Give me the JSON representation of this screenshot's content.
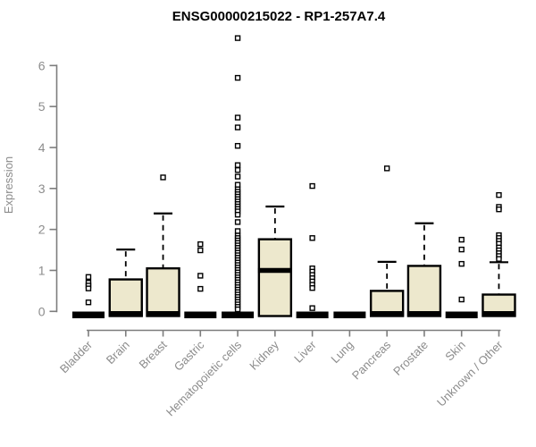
{
  "title": "ENSG00000215022 - RP1-257A7.4",
  "chart_data": {
    "type": "boxplot",
    "title": "ENSG00000215022 - RP1-257A7.4",
    "xlabel": "",
    "ylabel": "Expression",
    "ylim": [
      0,
      6.8
    ],
    "yticks": [
      0,
      1,
      2,
      3,
      4,
      5,
      6
    ],
    "grid": false,
    "legend": "none",
    "categories": [
      "Bladder",
      "Brain",
      "Breast",
      "Gastric",
      "Hematopoietic cells",
      "Kidney",
      "Liver",
      "Lung",
      "Pancreas",
      "Prostate",
      "Skin",
      "Unknown / Other"
    ],
    "series": [
      {
        "name": "Bladder",
        "q1": 0,
        "median": 0,
        "q3": 0,
        "whisker_low": 0,
        "whisker_high": 0,
        "outliers": [
          0.84,
          0.7,
          0.63,
          0.56,
          0.22
        ]
      },
      {
        "name": "Brain",
        "q1": 0,
        "median": 0,
        "q3": 0.78,
        "whisker_low": 0,
        "whisker_high": 1.51,
        "outliers": []
      },
      {
        "name": "Breast",
        "q1": 0,
        "median": 0,
        "q3": 1.05,
        "whisker_low": 0,
        "whisker_high": 2.39,
        "outliers": [
          3.27
        ]
      },
      {
        "name": "Gastric",
        "q1": 0,
        "median": 0,
        "q3": 0,
        "whisker_low": 0,
        "whisker_high": 0,
        "outliers": [
          1.64,
          1.49,
          0.87,
          0.55
        ]
      },
      {
        "name": "Hematopoietic cells",
        "q1": 0,
        "median": 0,
        "q3": 0,
        "whisker_low": 0,
        "whisker_high": 0,
        "outliers": [
          6.67,
          5.7,
          4.73,
          4.49,
          4.04,
          3.57,
          3.45,
          3.29,
          3.09,
          2.98,
          2.92,
          2.86,
          2.8,
          2.74,
          2.68,
          2.62,
          2.56,
          2.5,
          2.44,
          2.36,
          2.18,
          1.96,
          1.85,
          1.79,
          1.73,
          1.67,
          1.61,
          1.55,
          1.49,
          1.43,
          1.37,
          1.31,
          1.25,
          1.19,
          1.13,
          1.07,
          1.01,
          0.95,
          0.89,
          0.83,
          0.77,
          0.71,
          0.65,
          0.59,
          0.53,
          0.47,
          0.41,
          0.35,
          0.29,
          0.23,
          0.17,
          0.11,
          0.05
        ]
      },
      {
        "name": "Kidney",
        "q1": 0,
        "median": 1.0,
        "q3": 1.76,
        "whisker_low": 0,
        "whisker_high": 2.56,
        "outliers": []
      },
      {
        "name": "Liver",
        "q1": 0,
        "median": 0,
        "q3": 0,
        "whisker_low": 0,
        "whisker_high": 0,
        "outliers": [
          3.06,
          1.79,
          1.05,
          0.97,
          0.89,
          0.81,
          0.73,
          0.65,
          0.57,
          0.08
        ]
      },
      {
        "name": "Lung",
        "q1": 0,
        "median": 0,
        "q3": 0,
        "whisker_low": 0,
        "whisker_high": 0,
        "outliers": []
      },
      {
        "name": "Pancreas",
        "q1": 0,
        "median": 0,
        "q3": 0.5,
        "whisker_low": 0,
        "whisker_high": 1.21,
        "outliers": [
          3.49
        ]
      },
      {
        "name": "Prostate",
        "q1": 0,
        "median": 0,
        "q3": 1.11,
        "whisker_low": 0,
        "whisker_high": 2.15,
        "outliers": []
      },
      {
        "name": "Skin",
        "q1": 0,
        "median": 0,
        "q3": 0,
        "whisker_low": 0,
        "whisker_high": 0,
        "outliers": [
          1.75,
          1.51,
          1.16,
          0.29
        ]
      },
      {
        "name": "Unknown / Other",
        "q1": 0,
        "median": 0,
        "q3": 0.41,
        "whisker_low": 0,
        "whisker_high": 1.2,
        "outliers": [
          2.84,
          2.55,
          2.49,
          1.86,
          1.79,
          1.72,
          1.65,
          1.56,
          1.49,
          1.42,
          1.35,
          1.28
        ]
      }
    ],
    "colors": {
      "box_fill": "#EDE8CD",
      "box_border": "#000000",
      "median": "#000000",
      "whisker": "#000000",
      "outlier_stroke": "#000000",
      "outlier_fill": "#FFFFFF",
      "axis_line": "#7d7d7d",
      "axis_text": "#8c8c8c",
      "title_text": "#000000",
      "background": "#FFFFFF"
    }
  }
}
